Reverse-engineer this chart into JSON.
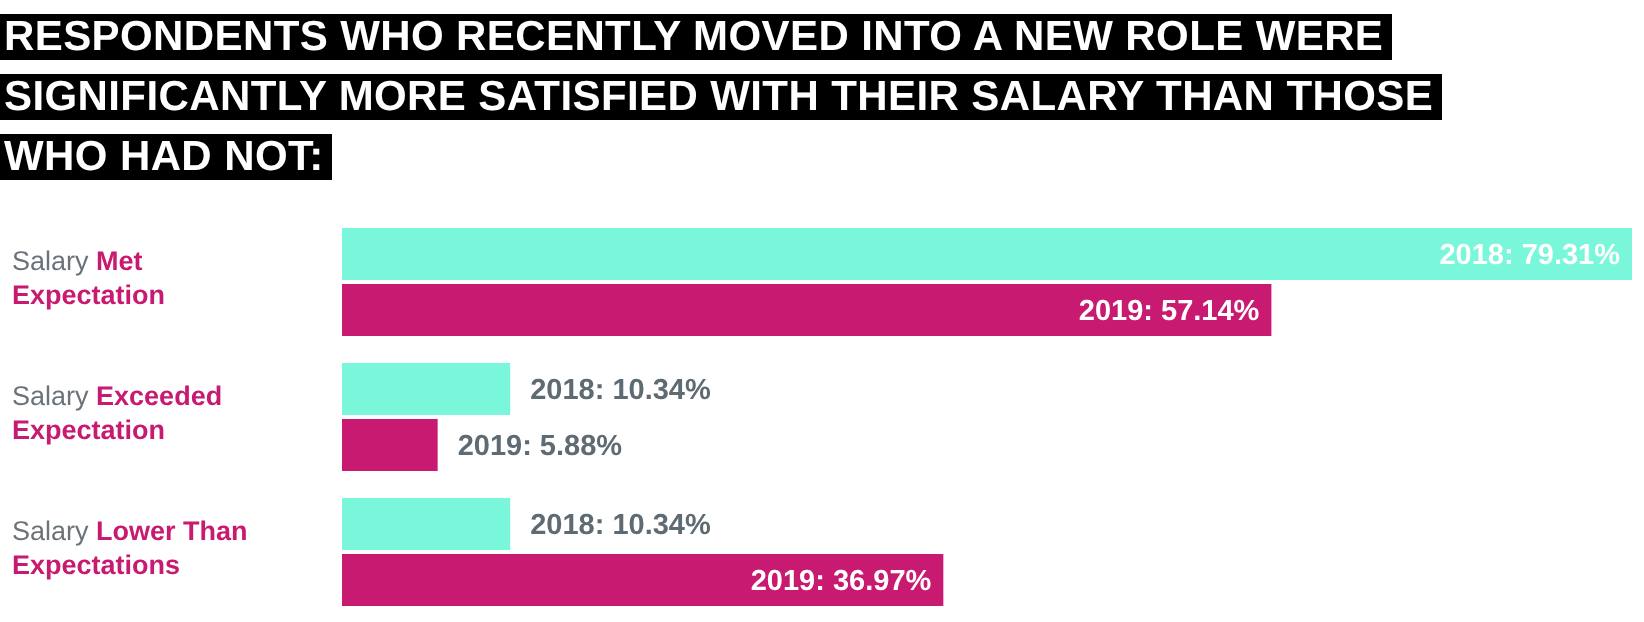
{
  "chart_data": {
    "type": "bar",
    "orientation": "horizontal",
    "title": "RESPONDENTS WHO RECENTLY MOVED INTO A NEW ROLE WERE SIGNIFICANTLY MORE SATISFIED WITH THEIR SALARY THAN THOSE WHO HAD NOT:",
    "categories": [
      "Salary Met Expectation",
      "Salary Exceeded Expectation",
      "Salary Lower Than Expectations"
    ],
    "series": [
      {
        "color": "#7af7da",
        "values": [
          79.31,
          10.34,
          10.34
        ],
        "value_labels": [
          "2018: 79.31%",
          "2018: 10.34%",
          "2018: 10.34%"
        ]
      },
      {
        "color": "#c71a70",
        "values": [
          57.14,
          5.88,
          36.97
        ],
        "value_labels": [
          "2019: 57.14%",
          "2019: 5.88%",
          "2019: 36.97%"
        ]
      }
    ]
  }
}
